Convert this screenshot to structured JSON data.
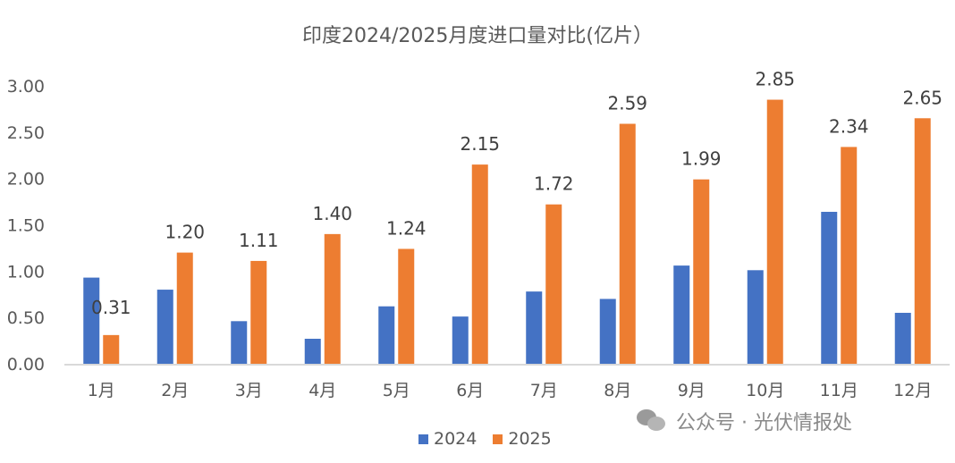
{
  "chart_data": {
    "type": "bar",
    "title": "印度2024/2025月度进口量对比(亿片）",
    "categories": [
      "1月",
      "2月",
      "3月",
      "4月",
      "5月",
      "6月",
      "7月",
      "8月",
      "9月",
      "10月",
      "11月",
      "12月"
    ],
    "series": [
      {
        "name": "2024",
        "color": "#4472C4",
        "values": [
          0.93,
          0.8,
          0.46,
          0.27,
          0.62,
          0.51,
          0.78,
          0.7,
          1.06,
          1.01,
          1.64,
          0.55
        ]
      },
      {
        "name": "2025",
        "color": "#ED7D31",
        "values": [
          0.31,
          1.2,
          1.11,
          1.4,
          1.24,
          2.15,
          1.72,
          2.59,
          1.99,
          2.85,
          2.34,
          2.65
        ],
        "data_labels": [
          "0.31",
          "1.20",
          "1.11",
          "1.40",
          "1.24",
          "2.15",
          "1.72",
          "2.59",
          "1.99",
          "2.85",
          "2.34",
          "2.65"
        ]
      }
    ],
    "yticks": [
      "0.00",
      "0.50",
      "1.00",
      "1.50",
      "2.00",
      "2.50",
      "3.00"
    ],
    "ylim": [
      0,
      3.0
    ],
    "grid": false,
    "legend": "bottom"
  },
  "watermark": {
    "text": "公众号 · 光伏情报处",
    "icon": "wechat-icon"
  }
}
